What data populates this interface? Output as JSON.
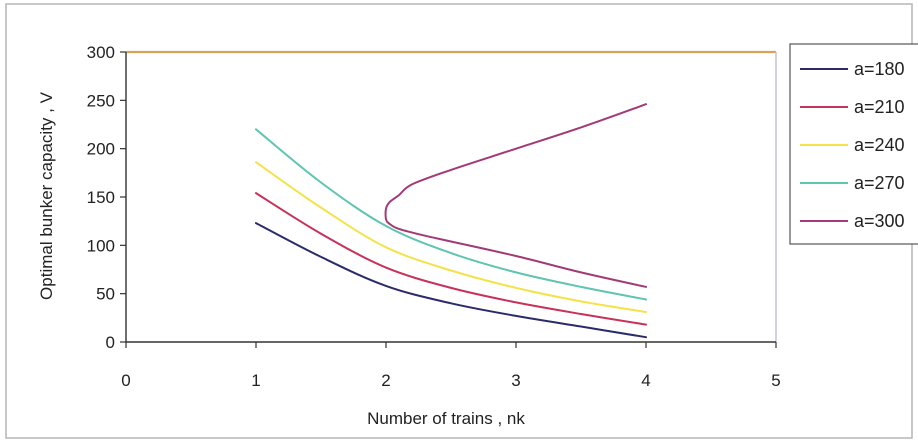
{
  "chart_data": {
    "type": "line",
    "xlabel": "Number of trains , nk",
    "ylabel": "Optimal bunker capacity , V",
    "xlim": [
      0,
      5
    ],
    "ylim": [
      0,
      300
    ],
    "xticks": [
      "0",
      "1",
      "2",
      "3",
      "4",
      "5"
    ],
    "yticks": [
      "0",
      "50",
      "100",
      "150",
      "200",
      "250",
      "300"
    ],
    "grid": false,
    "legend_position": "right",
    "series": [
      {
        "name": "a=180",
        "color": "#2b2a6b",
        "x": [
          1,
          1.5,
          2,
          2.5,
          3,
          3.5,
          4
        ],
        "y": [
          123,
          88,
          58,
          40,
          27,
          16,
          5
        ]
      },
      {
        "name": "a=210",
        "color": "#c8325a",
        "x": [
          1,
          1.5,
          2,
          2.5,
          3,
          3.5,
          4
        ],
        "y": [
          154,
          112,
          77,
          56,
          41,
          29,
          18
        ]
      },
      {
        "name": "a=240",
        "color": "#f2e34a",
        "x": [
          1,
          1.5,
          2,
          2.5,
          3,
          3.5,
          4
        ],
        "y": [
          186,
          139,
          98,
          74,
          56,
          42,
          31
        ]
      },
      {
        "name": "a=270",
        "color": "#5fc4b0",
        "x": [
          1,
          1.5,
          2,
          2.5,
          3,
          3.5,
          4
        ],
        "y": [
          220,
          165,
          120,
          92,
          72,
          57,
          44
        ]
      },
      {
        "name": "a=300",
        "color": "#a23a78",
        "x": [
          4,
          3.5,
          3,
          2.5,
          2.2,
          2.1,
          2.03,
          2.0,
          2.0,
          2.03,
          2.1,
          2.3,
          2.5,
          3,
          3.5,
          4
        ],
        "y": [
          246,
          222,
          200,
          178,
          163,
          152,
          145,
          138,
          127,
          122,
          117,
          110,
          104,
          89,
          72,
          57
        ]
      }
    ]
  }
}
